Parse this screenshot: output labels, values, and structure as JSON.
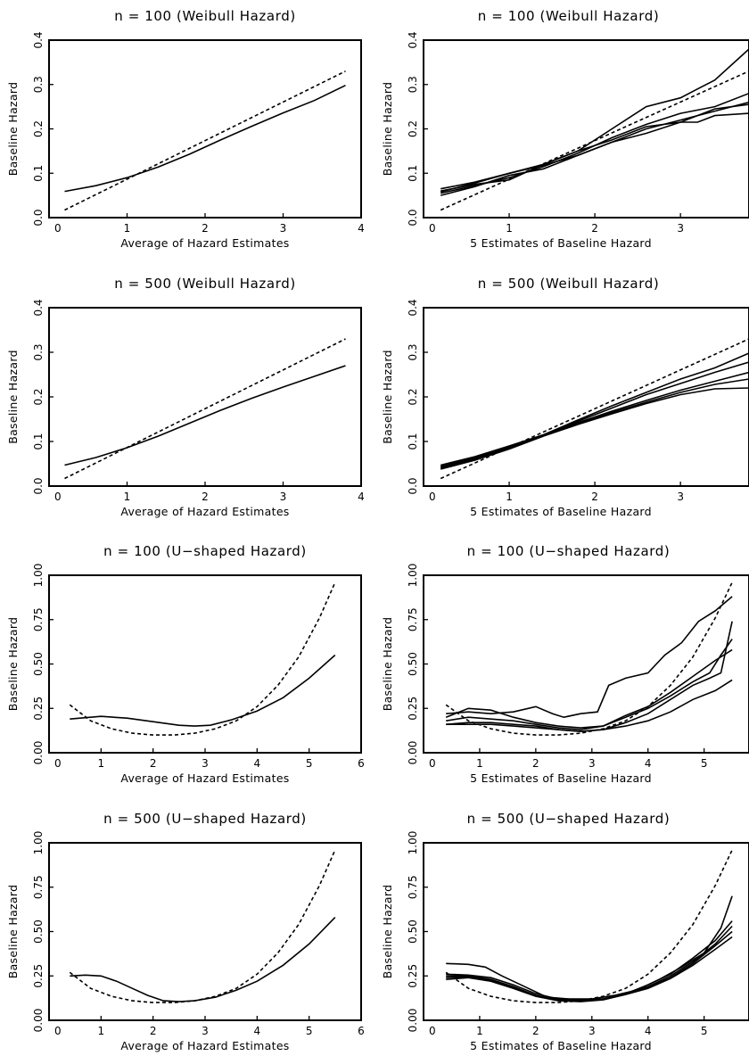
{
  "chart_data": [
    {
      "type": "line",
      "title": "n = 100 (Weibull Hazard)",
      "xlabel": "Average of Hazard Estimates",
      "ylabel": "Baseline Hazard",
      "xlim": [
        0,
        4
      ],
      "ylim": [
        0,
        0.4
      ],
      "xticks": [
        "0",
        "1",
        "2",
        "3",
        "4"
      ],
      "yticks": [
        "0.0",
        "0.1",
        "0.2",
        "0.3",
        "0.4"
      ],
      "series": [
        {
          "style": "solid",
          "x": [
            0.2,
            0.6,
            1.0,
            1.4,
            1.8,
            2.2,
            2.6,
            3.0,
            3.4,
            3.8
          ],
          "y": [
            0.059,
            0.072,
            0.09,
            0.114,
            0.143,
            0.175,
            0.206,
            0.236,
            0.264,
            0.298
          ]
        },
        {
          "style": "dashed",
          "x": [
            0.2,
            3.8
          ],
          "y": [
            0.017,
            0.33
          ]
        }
      ]
    },
    {
      "type": "line",
      "title": "n = 100 (Weibull Hazard)",
      "xlabel": "5 Estimates of Baseline Hazard",
      "ylabel": "Baseline Hazard",
      "xlim": [
        0,
        3.8
      ],
      "ylim": [
        0,
        0.4
      ],
      "xticks": [
        "0",
        "1",
        "2",
        "3"
      ],
      "yticks": [
        "0.0",
        "0.1",
        "0.2",
        "0.3",
        "0.4"
      ],
      "series": [
        {
          "style": "solid",
          "x": [
            0.2,
            0.6,
            1.0,
            1.4,
            1.8,
            2.2,
            2.6,
            3.0,
            3.2,
            3.4,
            3.8
          ],
          "y": [
            0.065,
            0.08,
            0.1,
            0.12,
            0.15,
            0.2,
            0.25,
            0.27,
            0.29,
            0.31,
            0.38
          ]
        },
        {
          "style": "solid",
          "x": [
            0.2,
            0.6,
            1.0,
            1.4,
            1.8,
            2.2,
            2.6,
            3.0,
            3.4,
            3.8
          ],
          "y": [
            0.055,
            0.072,
            0.09,
            0.115,
            0.145,
            0.18,
            0.21,
            0.235,
            0.25,
            0.28
          ]
        },
        {
          "style": "solid",
          "x": [
            0.2,
            0.6,
            1.0,
            1.4,
            1.8,
            2.2,
            2.6,
            3.0,
            3.4,
            3.8
          ],
          "y": [
            0.05,
            0.07,
            0.095,
            0.11,
            0.14,
            0.17,
            0.2,
            0.22,
            0.24,
            0.26
          ]
        },
        {
          "style": "solid",
          "x": [
            0.2,
            0.6,
            1.0,
            1.4,
            1.8,
            2.2,
            2.6,
            3.0,
            3.4,
            3.8
          ],
          "y": [
            0.06,
            0.075,
            0.085,
            0.12,
            0.15,
            0.175,
            0.205,
            0.215,
            0.245,
            0.255
          ]
        },
        {
          "style": "solid",
          "x": [
            0.2,
            0.6,
            1.0,
            1.4,
            1.8,
            2.2,
            2.6,
            3.0,
            3.2,
            3.4,
            3.8
          ],
          "y": [
            0.058,
            0.078,
            0.1,
            0.118,
            0.14,
            0.17,
            0.19,
            0.215,
            0.215,
            0.23,
            0.235
          ]
        },
        {
          "style": "dashed",
          "x": [
            0.2,
            3.8
          ],
          "y": [
            0.017,
            0.33
          ]
        }
      ]
    },
    {
      "type": "line",
      "title": "n = 500 (Weibull Hazard)",
      "xlabel": "Average of Hazard Estimates",
      "ylabel": "Baseline Hazard",
      "xlim": [
        0,
        4
      ],
      "ylim": [
        0,
        0.4
      ],
      "xticks": [
        "0",
        "1",
        "2",
        "3",
        "4"
      ],
      "yticks": [
        "0.0",
        "0.1",
        "0.2",
        "0.3",
        "0.4"
      ],
      "series": [
        {
          "style": "solid",
          "x": [
            0.2,
            0.6,
            1.0,
            1.4,
            1.8,
            2.2,
            2.6,
            3.0,
            3.4,
            3.8
          ],
          "y": [
            0.047,
            0.064,
            0.086,
            0.112,
            0.141,
            0.17,
            0.197,
            0.222,
            0.246,
            0.27
          ]
        },
        {
          "style": "dashed",
          "x": [
            0.2,
            3.8
          ],
          "y": [
            0.017,
            0.33
          ]
        }
      ]
    },
    {
      "type": "line",
      "title": "n = 500 (Weibull Hazard)",
      "xlabel": "5 Estimates of Baseline Hazard",
      "ylabel": "Baseline Hazard",
      "xlim": [
        0,
        3.8
      ],
      "ylim": [
        0,
        0.4
      ],
      "xticks": [
        "0",
        "1",
        "2",
        "3"
      ],
      "yticks": [
        "0.0",
        "0.1",
        "0.2",
        "0.3",
        "0.4"
      ],
      "series": [
        {
          "style": "solid",
          "x": [
            0.2,
            0.6,
            1.0,
            1.4,
            1.8,
            2.2,
            2.6,
            3.0,
            3.4,
            3.8
          ],
          "y": [
            0.047,
            0.066,
            0.09,
            0.115,
            0.148,
            0.18,
            0.21,
            0.24,
            0.265,
            0.298
          ]
        },
        {
          "style": "solid",
          "x": [
            0.2,
            0.6,
            1.0,
            1.4,
            1.8,
            2.2,
            2.6,
            3.0,
            3.4,
            3.8
          ],
          "y": [
            0.044,
            0.064,
            0.088,
            0.115,
            0.145,
            0.175,
            0.205,
            0.23,
            0.255,
            0.278
          ]
        },
        {
          "style": "solid",
          "x": [
            0.2,
            0.6,
            1.0,
            1.4,
            1.8,
            2.2,
            2.6,
            3.0,
            3.4,
            3.8
          ],
          "y": [
            0.042,
            0.062,
            0.087,
            0.114,
            0.142,
            0.168,
            0.192,
            0.215,
            0.235,
            0.255
          ]
        },
        {
          "style": "solid",
          "x": [
            0.2,
            0.6,
            1.0,
            1.4,
            1.8,
            2.2,
            2.6,
            3.0,
            3.4,
            3.8
          ],
          "y": [
            0.04,
            0.06,
            0.085,
            0.113,
            0.14,
            0.165,
            0.188,
            0.21,
            0.228,
            0.24
          ]
        },
        {
          "style": "solid",
          "x": [
            0.2,
            0.6,
            1.0,
            1.4,
            1.8,
            2.2,
            2.6,
            3.0,
            3.4,
            3.8
          ],
          "y": [
            0.038,
            0.058,
            0.083,
            0.112,
            0.138,
            0.162,
            0.185,
            0.205,
            0.218,
            0.22
          ]
        },
        {
          "style": "dashed",
          "x": [
            0.2,
            3.8
          ],
          "y": [
            0.017,
            0.33
          ]
        }
      ]
    },
    {
      "type": "line",
      "title": "n = 100 (U−shaped Hazard)",
      "xlabel": "Average of Hazard Estimates",
      "ylabel": "Baseline Hazard",
      "xlim": [
        0,
        6
      ],
      "ylim": [
        0,
        1.0
      ],
      "xticks": [
        "0",
        "1",
        "2",
        "3",
        "4",
        "5",
        "6"
      ],
      "yticks": [
        "0.00",
        "0.25",
        "0.50",
        "0.75",
        "1.00"
      ],
      "series": [
        {
          "style": "solid",
          "x": [
            0.4,
            1.0,
            1.5,
            2.0,
            2.5,
            2.8,
            3.1,
            3.5,
            4.0,
            4.5,
            5.0,
            5.5
          ],
          "y": [
            0.19,
            0.205,
            0.195,
            0.175,
            0.155,
            0.15,
            0.155,
            0.185,
            0.235,
            0.31,
            0.42,
            0.55
          ]
        },
        {
          "style": "dashed",
          "x": [
            0.4,
            0.8,
            1.2,
            1.6,
            2.0,
            2.4,
            2.8,
            3.2,
            3.6,
            4.0,
            4.4,
            4.8,
            5.2,
            5.5
          ],
          "y": [
            0.27,
            0.18,
            0.135,
            0.11,
            0.1,
            0.1,
            0.11,
            0.135,
            0.18,
            0.26,
            0.38,
            0.54,
            0.76,
            0.96
          ]
        }
      ]
    },
    {
      "type": "line",
      "title": "n = 100 (U−shaped Hazard)",
      "xlabel": "5 Estimates of Baseline Hazard",
      "ylabel": "Baseline Hazard",
      "xlim": [
        0,
        5.8
      ],
      "ylim": [
        0,
        1.0
      ],
      "xticks": [
        "0",
        "1",
        "2",
        "3",
        "4",
        "5"
      ],
      "yticks": [
        "0.00",
        "0.25",
        "0.50",
        "0.75",
        "1.00"
      ],
      "series": [
        {
          "style": "solid",
          "x": [
            0.4,
            0.8,
            1.2,
            1.6,
            2.0,
            2.3,
            2.5,
            2.8,
            3.1,
            3.3,
            3.6,
            4.0,
            4.3,
            4.6,
            4.9,
            5.2,
            5.5
          ],
          "y": [
            0.22,
            0.23,
            0.22,
            0.23,
            0.26,
            0.22,
            0.2,
            0.22,
            0.23,
            0.38,
            0.42,
            0.45,
            0.55,
            0.62,
            0.74,
            0.8,
            0.88
          ]
        },
        {
          "style": "solid",
          "x": [
            0.4,
            0.8,
            1.2,
            1.6,
            2.0,
            2.4,
            2.8,
            3.2,
            3.6,
            4.0,
            4.4,
            4.8,
            5.1,
            5.3,
            5.5
          ],
          "y": [
            0.2,
            0.25,
            0.24,
            0.2,
            0.17,
            0.15,
            0.14,
            0.15,
            0.2,
            0.25,
            0.32,
            0.4,
            0.45,
            0.55,
            0.64
          ]
        },
        {
          "style": "solid",
          "x": [
            0.4,
            0.8,
            1.2,
            1.6,
            2.0,
            2.4,
            2.8,
            3.2,
            3.6,
            4.0,
            4.4,
            4.8,
            5.2,
            5.5
          ],
          "y": [
            0.18,
            0.2,
            0.19,
            0.18,
            0.16,
            0.14,
            0.13,
            0.15,
            0.21,
            0.26,
            0.34,
            0.43,
            0.52,
            0.58
          ]
        },
        {
          "style": "solid",
          "x": [
            0.4,
            0.8,
            1.2,
            1.6,
            2.0,
            2.4,
            2.8,
            3.2,
            3.6,
            4.0,
            4.4,
            4.8,
            5.1,
            5.3,
            5.5
          ],
          "y": [
            0.16,
            0.17,
            0.17,
            0.16,
            0.15,
            0.13,
            0.12,
            0.13,
            0.17,
            0.22,
            0.3,
            0.38,
            0.42,
            0.45,
            0.74
          ]
        },
        {
          "style": "solid",
          "x": [
            0.4,
            0.8,
            1.2,
            1.6,
            2.0,
            2.4,
            2.8,
            3.2,
            3.6,
            4.0,
            4.4,
            4.8,
            5.2,
            5.5
          ],
          "y": [
            0.16,
            0.16,
            0.16,
            0.15,
            0.14,
            0.13,
            0.12,
            0.13,
            0.15,
            0.18,
            0.23,
            0.3,
            0.35,
            0.41
          ]
        },
        {
          "style": "dashed",
          "x": [
            0.4,
            0.8,
            1.2,
            1.6,
            2.0,
            2.4,
            2.8,
            3.2,
            3.6,
            4.0,
            4.4,
            4.8,
            5.2,
            5.5
          ],
          "y": [
            0.27,
            0.18,
            0.135,
            0.11,
            0.1,
            0.1,
            0.11,
            0.135,
            0.18,
            0.26,
            0.38,
            0.54,
            0.76,
            0.96
          ]
        }
      ]
    },
    {
      "type": "line",
      "title": "n = 500 (U−shaped Hazard)",
      "xlabel": "Average of Hazard Estimates",
      "ylabel": "Baseline Hazard",
      "xlim": [
        0,
        6
      ],
      "ylim": [
        0,
        1.0
      ],
      "xticks": [
        "0",
        "1",
        "2",
        "3",
        "4",
        "5",
        "6"
      ],
      "yticks": [
        "0.00",
        "0.25",
        "0.50",
        "0.75",
        "1.00"
      ],
      "series": [
        {
          "style": "solid",
          "x": [
            0.4,
            0.7,
            1.0,
            1.3,
            1.6,
            1.9,
            2.2,
            2.5,
            2.8,
            3.2,
            3.6,
            4.0,
            4.5,
            5.0,
            5.5
          ],
          "y": [
            0.25,
            0.255,
            0.25,
            0.22,
            0.18,
            0.14,
            0.11,
            0.105,
            0.11,
            0.13,
            0.17,
            0.22,
            0.31,
            0.43,
            0.58
          ]
        },
        {
          "style": "dashed",
          "x": [
            0.4,
            0.8,
            1.2,
            1.6,
            2.0,
            2.4,
            2.8,
            3.2,
            3.6,
            4.0,
            4.4,
            4.8,
            5.2,
            5.5
          ],
          "y": [
            0.27,
            0.18,
            0.135,
            0.11,
            0.1,
            0.1,
            0.11,
            0.135,
            0.18,
            0.26,
            0.38,
            0.54,
            0.76,
            0.96
          ]
        }
      ]
    },
    {
      "type": "line",
      "title": "n = 500 (U−shaped Hazard)",
      "xlabel": "5 Estimates of Baseline Hazard",
      "ylabel": "Baseline Hazard",
      "xlim": [
        0,
        5.8
      ],
      "ylim": [
        0,
        1.0
      ],
      "xticks": [
        "0",
        "1",
        "2",
        "3",
        "4",
        "5"
      ],
      "yticks": [
        "0.00",
        "0.25",
        "0.50",
        "0.75",
        "1.00"
      ],
      "series": [
        {
          "style": "solid",
          "x": [
            0.4,
            0.8,
            1.1,
            1.4,
            1.8,
            2.2,
            2.6,
            3.0,
            3.4,
            3.8,
            4.2,
            4.6,
            5.0,
            5.3,
            5.5
          ],
          "y": [
            0.32,
            0.315,
            0.3,
            0.25,
            0.19,
            0.13,
            0.12,
            0.12,
            0.14,
            0.17,
            0.23,
            0.3,
            0.38,
            0.52,
            0.7
          ]
        },
        {
          "style": "solid",
          "x": [
            0.4,
            0.8,
            1.2,
            1.6,
            2.0,
            2.4,
            2.8,
            3.2,
            3.6,
            4.0,
            4.4,
            4.8,
            5.2,
            5.5
          ],
          "y": [
            0.26,
            0.255,
            0.24,
            0.2,
            0.15,
            0.12,
            0.115,
            0.12,
            0.15,
            0.2,
            0.26,
            0.35,
            0.45,
            0.56
          ]
        },
        {
          "style": "solid",
          "x": [
            0.4,
            0.8,
            1.2,
            1.6,
            2.0,
            2.4,
            2.8,
            3.2,
            3.6,
            4.0,
            4.4,
            4.8,
            5.2,
            5.5
          ],
          "y": [
            0.25,
            0.25,
            0.23,
            0.19,
            0.14,
            0.115,
            0.11,
            0.12,
            0.15,
            0.19,
            0.25,
            0.33,
            0.43,
            0.53
          ]
        },
        {
          "style": "solid",
          "x": [
            0.4,
            0.8,
            1.2,
            1.6,
            2.0,
            2.4,
            2.8,
            3.2,
            3.6,
            4.0,
            4.4,
            4.8,
            5.2,
            5.5
          ],
          "y": [
            0.24,
            0.245,
            0.225,
            0.185,
            0.14,
            0.112,
            0.108,
            0.118,
            0.148,
            0.185,
            0.24,
            0.32,
            0.42,
            0.5
          ]
        },
        {
          "style": "solid",
          "x": [
            0.4,
            0.8,
            1.2,
            1.6,
            2.0,
            2.4,
            2.8,
            3.2,
            3.6,
            4.0,
            4.4,
            4.8,
            5.2,
            5.5
          ],
          "y": [
            0.23,
            0.24,
            0.22,
            0.18,
            0.135,
            0.11,
            0.105,
            0.115,
            0.145,
            0.18,
            0.235,
            0.31,
            0.4,
            0.47
          ]
        },
        {
          "style": "dashed",
          "x": [
            0.4,
            0.8,
            1.2,
            1.6,
            2.0,
            2.4,
            2.8,
            3.2,
            3.6,
            4.0,
            4.4,
            4.8,
            5.2,
            5.5
          ],
          "y": [
            0.27,
            0.18,
            0.135,
            0.11,
            0.1,
            0.1,
            0.11,
            0.135,
            0.18,
            0.26,
            0.38,
            0.54,
            0.76,
            0.96
          ]
        }
      ]
    }
  ]
}
